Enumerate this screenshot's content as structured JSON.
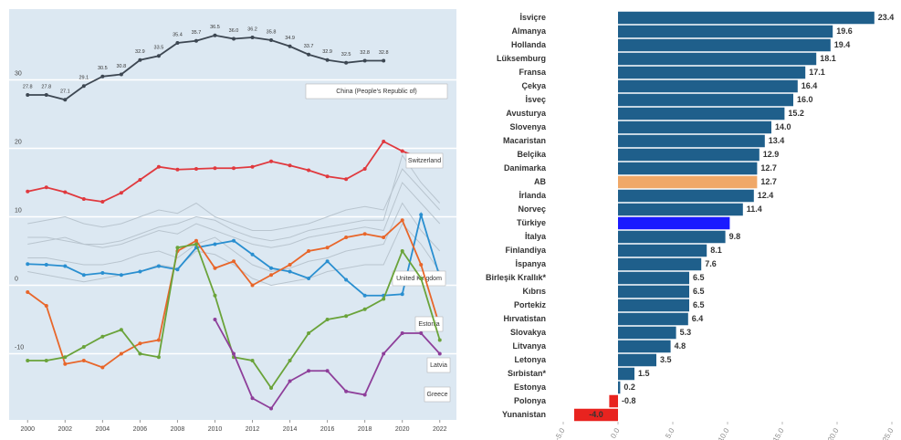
{
  "chart_data": [
    {
      "type": "line",
      "x": [
        2000,
        2001,
        2002,
        2003,
        2004,
        2005,
        2006,
        2007,
        2008,
        2009,
        2010,
        2011,
        2012,
        2013,
        2014,
        2015,
        2016,
        2017,
        2018,
        2019,
        2020,
        2021,
        2022
      ],
      "xlim": [
        1999.5,
        2022.5
      ],
      "xticks": [
        2000,
        2002,
        2004,
        2006,
        2008,
        2010,
        2012,
        2014,
        2016,
        2018,
        2020,
        2022
      ],
      "ylim": [
        -19,
        39
      ],
      "yticks": [
        -10,
        0,
        10,
        20,
        30
      ],
      "grid": true,
      "series": [
        {
          "color": "#b9c5cf",
          "values": [
            6,
            6.5,
            7,
            6,
            5.5,
            6,
            7,
            8,
            7.5,
            9,
            8,
            7,
            6,
            5.5,
            6,
            7,
            7.5,
            8,
            8.5,
            8,
            15,
            12,
            9
          ]
        },
        {
          "color": "#b9c5cf",
          "values": [
            9,
            9.5,
            10,
            9,
            8.5,
            9,
            10,
            11,
            10.5,
            12,
            10,
            9,
            8,
            8,
            8.5,
            9,
            10,
            11,
            11.5,
            11,
            17,
            14,
            11
          ]
        },
        {
          "color": "#b9c5cf",
          "values": [
            4,
            4,
            3.5,
            3,
            3,
            3.5,
            4.5,
            5,
            4,
            6,
            7,
            5,
            3,
            2,
            2.5,
            3.5,
            4,
            5,
            5.5,
            6,
            12,
            8,
            5
          ]
        },
        {
          "color": "#b9c5cf",
          "values": [
            7,
            7,
            6.5,
            6,
            6,
            6.5,
            7.5,
            8.5,
            9,
            10,
            9.5,
            8,
            7,
            6.5,
            7,
            8,
            8.5,
            9,
            9.5,
            9.5,
            19,
            15,
            12
          ]
        },
        {
          "color": "#b9c5cf",
          "values": [
            2,
            1.5,
            1,
            0.5,
            1,
            1.5,
            2,
            3,
            2.5,
            5,
            4.5,
            3,
            1,
            0,
            0.5,
            1,
            2,
            2.5,
            3,
            3,
            9,
            6,
            2
          ]
        },
        {
          "name": "China (People's Republic of)",
          "color": "#3d4752",
          "values": [
            27.8,
            27.8,
            27.1,
            29.1,
            30.5,
            30.8,
            32.9,
            33.5,
            35.4,
            35.7,
            36.5,
            36.0,
            36.2,
            35.8,
            34.9,
            33.7,
            32.9,
            32.5,
            32.8,
            32.8,
            null,
            null,
            null
          ],
          "value_labels": [
            "27.8",
            "27.8",
            "27.1",
            "29.1",
            "30.5",
            "30.8",
            "32.9",
            "33.5",
            "35.4",
            "35.7",
            "36.5",
            "36.0",
            "36.2",
            "35.8",
            "34.9",
            "33.7",
            "32.9",
            "32.5",
            "32.8",
            "32.8",
            null,
            null,
            null
          ]
        },
        {
          "name": "Switzerland",
          "color": "#e0393e",
          "values": [
            13.7,
            14.3,
            13.6,
            12.6,
            12.2,
            13.5,
            15.4,
            17.3,
            16.9,
            17.0,
            17.1,
            17.1,
            17.3,
            18.1,
            17.5,
            16.8,
            15.9,
            15.5,
            17.0,
            21.0,
            19.6,
            18.5,
            18.4
          ]
        },
        {
          "name": "United Kingdom",
          "color": "#2a8fd0",
          "values": [
            3.1,
            3.0,
            2.8,
            1.5,
            1.8,
            1.5,
            2.0,
            2.8,
            2.3,
            5.5,
            6.0,
            6.5,
            4.5,
            2.5,
            2.0,
            1.0,
            3.5,
            0.8,
            -1.5,
            -1.5,
            -1.3,
            10.3,
            1.2
          ]
        },
        {
          "name": "Estonia",
          "color": "#e8662a",
          "values": [
            -1.0,
            -3.0,
            -11.5,
            -11.0,
            -12.0,
            -10.0,
            -8.5,
            -8.0,
            5.0,
            6.5,
            2.5,
            3.5,
            0.0,
            1.5,
            3.0,
            5.0,
            5.5,
            7.0,
            7.5,
            7.0,
            9.5,
            3.0,
            -6.0
          ]
        },
        {
          "name": "Latvia",
          "color": "#6aa33a",
          "values": [
            -11.0,
            -11.0,
            -10.5,
            -9.0,
            -7.5,
            -6.5,
            -10.0,
            -10.5,
            5.5,
            6.0,
            -1.5,
            -10.5,
            -11.0,
            -15.0,
            -11.0,
            -7.0,
            -5.0,
            -4.5,
            -3.5,
            -2.0,
            5.0,
            1.0,
            -8.0
          ]
        },
        {
          "name": "Greece",
          "color": "#8e3f9a",
          "values": [
            null,
            null,
            null,
            null,
            null,
            null,
            null,
            null,
            null,
            null,
            -5.0,
            -10.0,
            -16.5,
            -18.0,
            -14.0,
            -12.5,
            -12.5,
            -15.5,
            -16.0,
            -10.0,
            -7.0,
            -7.0,
            -10.0
          ]
        }
      ]
    },
    {
      "type": "hbar",
      "categories": [
        "İsviçre",
        "Almanya",
        "Hollanda",
        "Lüksemburg",
        "Fransa",
        "Çekya",
        "İsveç",
        "Avusturya",
        "Slovenya",
        "Macaristan",
        "Belçika",
        "Danimarka",
        "AB",
        "İrlanda",
        "Norveç",
        "Türkiye",
        "İtalya",
        "Finlandiya",
        "İspanya",
        "Birleşik Krallık*",
        "Kıbrıs",
        "Portekiz",
        "Hırvatistan",
        "Slovakya",
        "Litvanya",
        "Letonya",
        "Sırbistan*",
        "Estonya",
        "Polonya",
        "Yunanistan"
      ],
      "values": [
        23.4,
        19.6,
        19.4,
        18.1,
        17.1,
        16.4,
        16.0,
        15.2,
        14.0,
        13.4,
        12.9,
        12.7,
        12.7,
        12.4,
        11.4,
        10.2,
        9.8,
        8.1,
        7.6,
        6.5,
        6.5,
        6.5,
        6.4,
        5.3,
        4.8,
        3.5,
        1.5,
        0.2,
        -0.8,
        -4.0
      ],
      "value_labels": [
        "23.4",
        "19.6",
        "19.4",
        "18.1",
        "17.1",
        "16.4",
        "16.0",
        "15.2",
        "14.0",
        "13.4",
        "12.9",
        "12.7",
        "12.7",
        "12.4",
        "11.4",
        null,
        "9.8",
        "8.1",
        "7.6",
        "6.5",
        "6.5",
        "6.5",
        "6.4",
        "5.3",
        "4.8",
        "3.5",
        "1.5",
        "0.2",
        "-0.8",
        "-4.0"
      ],
      "colors": [
        "#1f5f8b",
        "#1f5f8b",
        "#1f5f8b",
        "#1f5f8b",
        "#1f5f8b",
        "#1f5f8b",
        "#1f5f8b",
        "#1f5f8b",
        "#1f5f8b",
        "#1f5f8b",
        "#1f5f8b",
        "#1f5f8b",
        "#f0a868",
        "#1f5f8b",
        "#1f5f8b",
        "#1a1aff",
        "#1f5f8b",
        "#1f5f8b",
        "#1f5f8b",
        "#1f5f8b",
        "#1f5f8b",
        "#1f5f8b",
        "#1f5f8b",
        "#1f5f8b",
        "#1f5f8b",
        "#1f5f8b",
        "#1f5f8b",
        "#1f5f8b",
        "#e8231f",
        "#e8231f"
      ],
      "xlim": [
        -5,
        25
      ],
      "xticks": [
        {
          "value": -5,
          "label": "-5.0"
        },
        {
          "value": 0,
          "label": "0.0"
        },
        {
          "value": 5,
          "label": "5.0"
        },
        {
          "value": 10,
          "label": "10.0"
        },
        {
          "value": 15,
          "label": "15.0"
        },
        {
          "value": 20,
          "label": "20.0"
        },
        {
          "value": 25,
          "label": "25.0"
        }
      ]
    }
  ]
}
